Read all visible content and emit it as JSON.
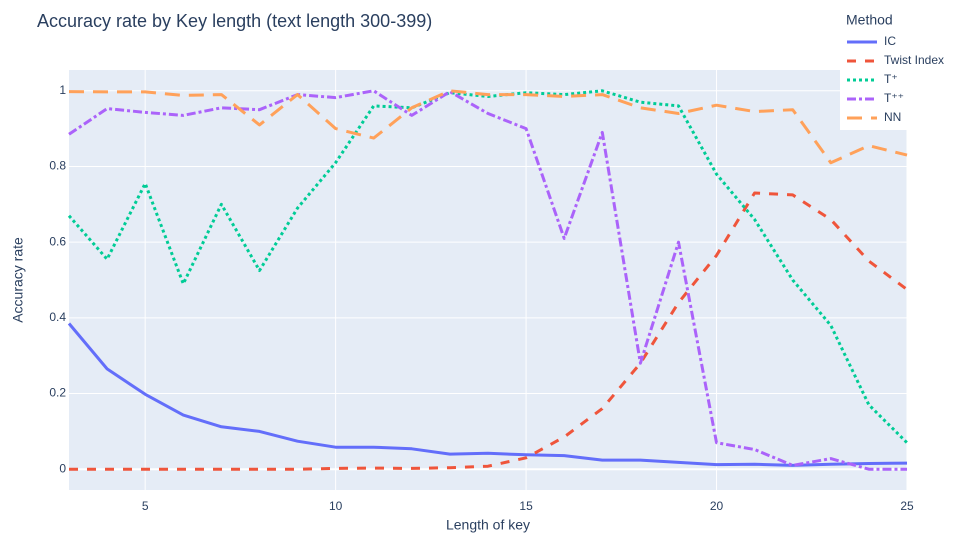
{
  "chart_data": {
    "type": "line",
    "title": "Accuracy rate by Key length (text length 300-399)",
    "xlabel": "Length of key",
    "ylabel": "Accuracy rate",
    "xlim": [
      3,
      25
    ],
    "ylim": [
      -0.055,
      1.055
    ],
    "x_ticks": [
      5,
      10,
      15,
      20,
      25
    ],
    "y_ticks": [
      0,
      0.2,
      0.4,
      0.6,
      0.8,
      1
    ],
    "x_tick_labels": [
      "5",
      "10",
      "15",
      "20",
      "25"
    ],
    "y_tick_labels": [
      "0",
      "0.2",
      "0.4",
      "0.6",
      "0.8",
      "1"
    ],
    "grid": true,
    "legend_title": "Method",
    "legend_position": "top-right",
    "x": [
      3,
      4,
      5,
      6,
      7,
      8,
      9,
      10,
      11,
      12,
      13,
      14,
      15,
      16,
      17,
      18,
      19,
      20,
      21,
      22,
      23,
      24,
      25
    ],
    "series": [
      {
        "name": "IC",
        "color": "#636efa",
        "dash": "solid",
        "values": [
          0.385,
          0.265,
          0.198,
          0.143,
          0.112,
          0.1,
          0.074,
          0.058,
          0.058,
          0.054,
          0.04,
          0.042,
          0.038,
          0.036,
          0.024,
          0.024,
          0.018,
          0.012,
          0.013,
          0.01,
          0.013,
          0.015,
          0.016
        ]
      },
      {
        "name": "Twist Index",
        "color": "#ef553b",
        "dash": "dash",
        "values": [
          0,
          0,
          0,
          0,
          0,
          0,
          0,
          0.002,
          0.003,
          0.002,
          0.004,
          0.008,
          0.03,
          0.085,
          0.16,
          0.28,
          0.44,
          0.565,
          0.73,
          0.725,
          0.66,
          0.55,
          0.475
        ]
      },
      {
        "name": "T⁺",
        "color": "#00cc96",
        "dash": "dot",
        "values": [
          0.67,
          0.555,
          0.755,
          0.49,
          0.7,
          0.525,
          0.69,
          0.81,
          0.96,
          0.955,
          0.995,
          0.985,
          0.995,
          0.99,
          1.0,
          0.97,
          0.96,
          0.78,
          0.66,
          0.5,
          0.38,
          0.17,
          0.07
        ]
      },
      {
        "name": "T⁺⁺",
        "color": "#ab63fa",
        "dash": "dashdot",
        "values": [
          0.885,
          0.953,
          0.943,
          0.935,
          0.955,
          0.95,
          0.99,
          0.982,
          1.0,
          0.935,
          0.998,
          0.94,
          0.9,
          0.61,
          0.89,
          0.28,
          0.6,
          0.07,
          0.052,
          0.01,
          0.028,
          0,
          0
        ]
      },
      {
        "name": "NN",
        "color": "#ffa15a",
        "dash": "longdash",
        "values": [
          0.998,
          0.997,
          0.997,
          0.988,
          0.99,
          0.91,
          0.99,
          0.9,
          0.875,
          0.955,
          1.0,
          0.99,
          0.99,
          0.985,
          0.99,
          0.955,
          0.94,
          0.962,
          0.945,
          0.95,
          0.81,
          0.855,
          0.83
        ]
      }
    ]
  }
}
